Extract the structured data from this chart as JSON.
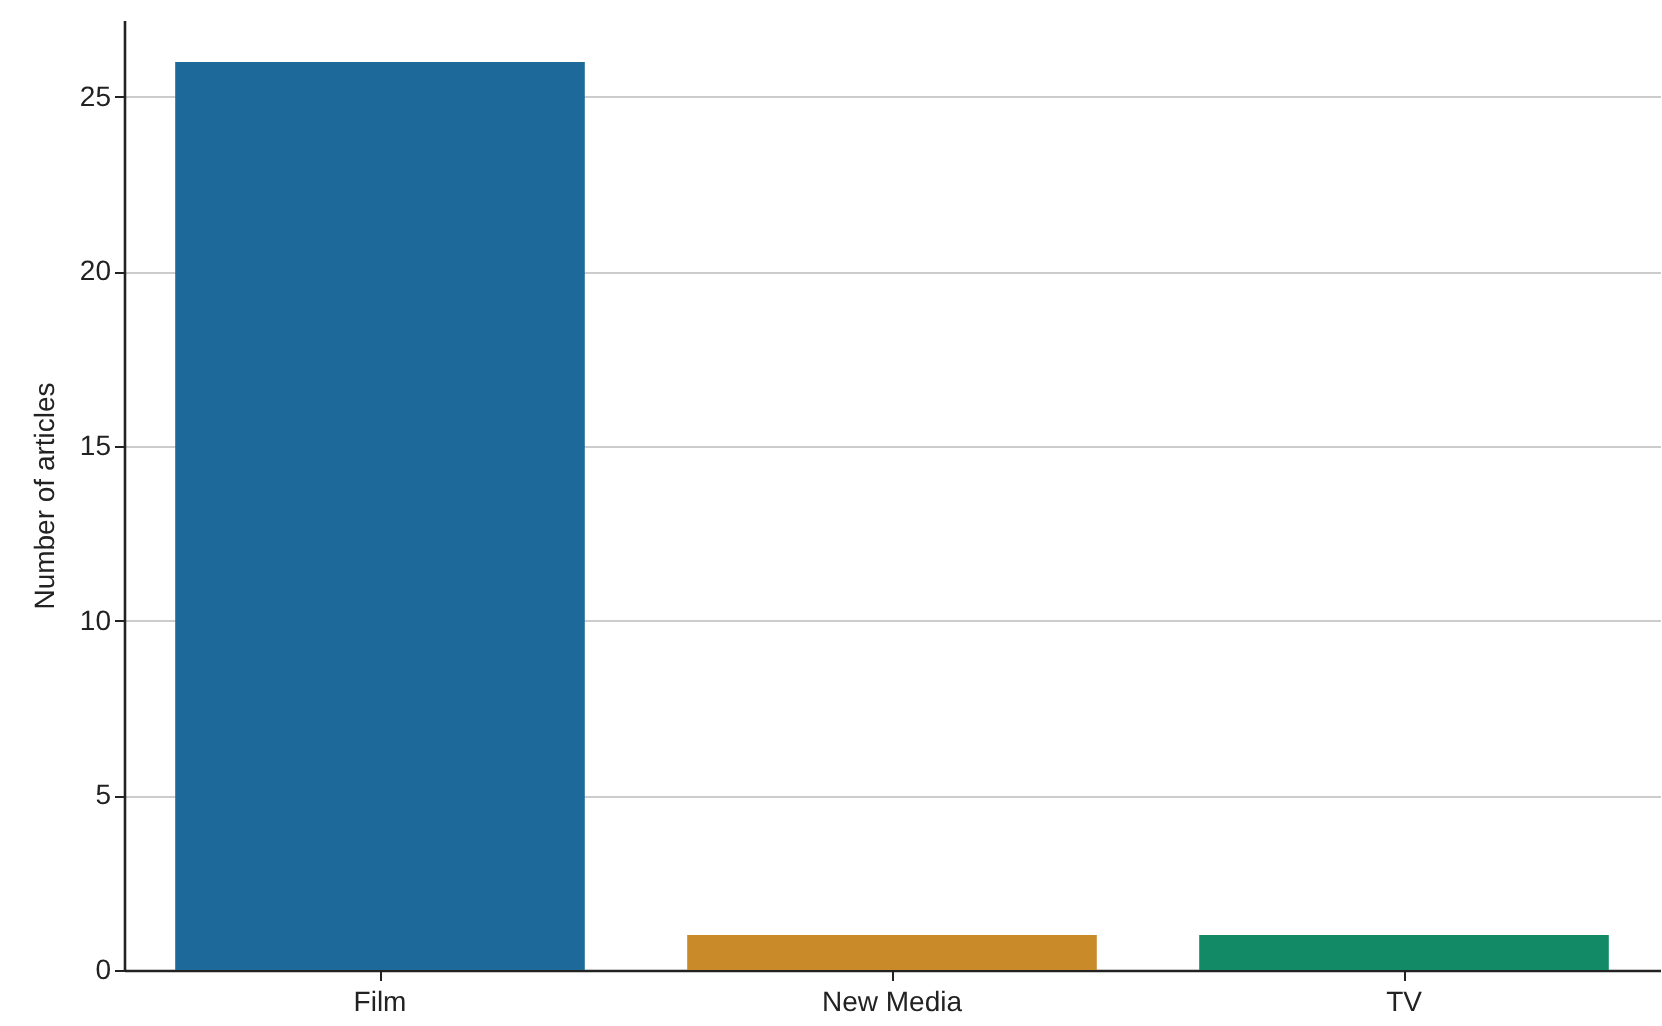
{
  "chart_data": {
    "type": "bar",
    "ylabel": "Number of articles",
    "categories": [
      "Film",
      "New Media",
      "TV"
    ],
    "values": [
      26,
      1,
      1
    ],
    "colors": [
      "#1d6a9a",
      "#c98a2a",
      "#138a66"
    ],
    "ylim": [
      0,
      27.2
    ],
    "yticks": [
      0,
      5,
      10,
      15,
      20,
      25
    ],
    "grid": "y"
  }
}
